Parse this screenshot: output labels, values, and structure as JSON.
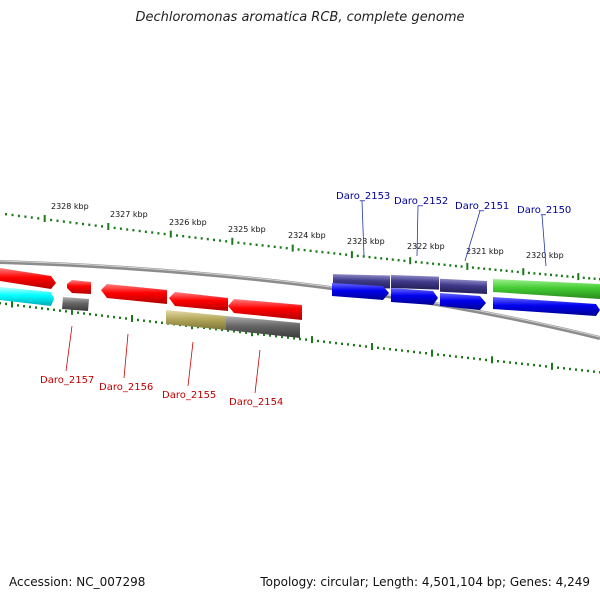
{
  "title": "Dechloromonas aromatica RCB, complete genome",
  "footer": {
    "accession": "Accession: NC_007298",
    "summary": "Topology: circular; Length: 4,501,104 bp; Genes: 4,249"
  },
  "scale_labels": [
    "2328 kbp",
    "2327 kbp",
    "2326 kbp",
    "2325 kbp",
    "2324 kbp",
    "2323 kbp",
    "2322 kbp",
    "2321 kbp",
    "2320 kbp"
  ],
  "upper_genes": [
    "Daro_2153",
    "Daro_2152",
    "Daro_2151",
    "Daro_2150"
  ],
  "lower_genes": [
    "Daro_2157",
    "Daro_2156",
    "Daro_2155",
    "Daro_2154"
  ],
  "colors": {
    "upper_label": "#00009b",
    "lower_label": "#c00000",
    "red": "#ff0000",
    "blue": "#0000ee",
    "navy": "#3f3a8a",
    "green": "#44cc33",
    "cyan": "#00ffff",
    "gray": "#666666",
    "olive": "#b4a85a",
    "tick": "#1a7a1a"
  }
}
